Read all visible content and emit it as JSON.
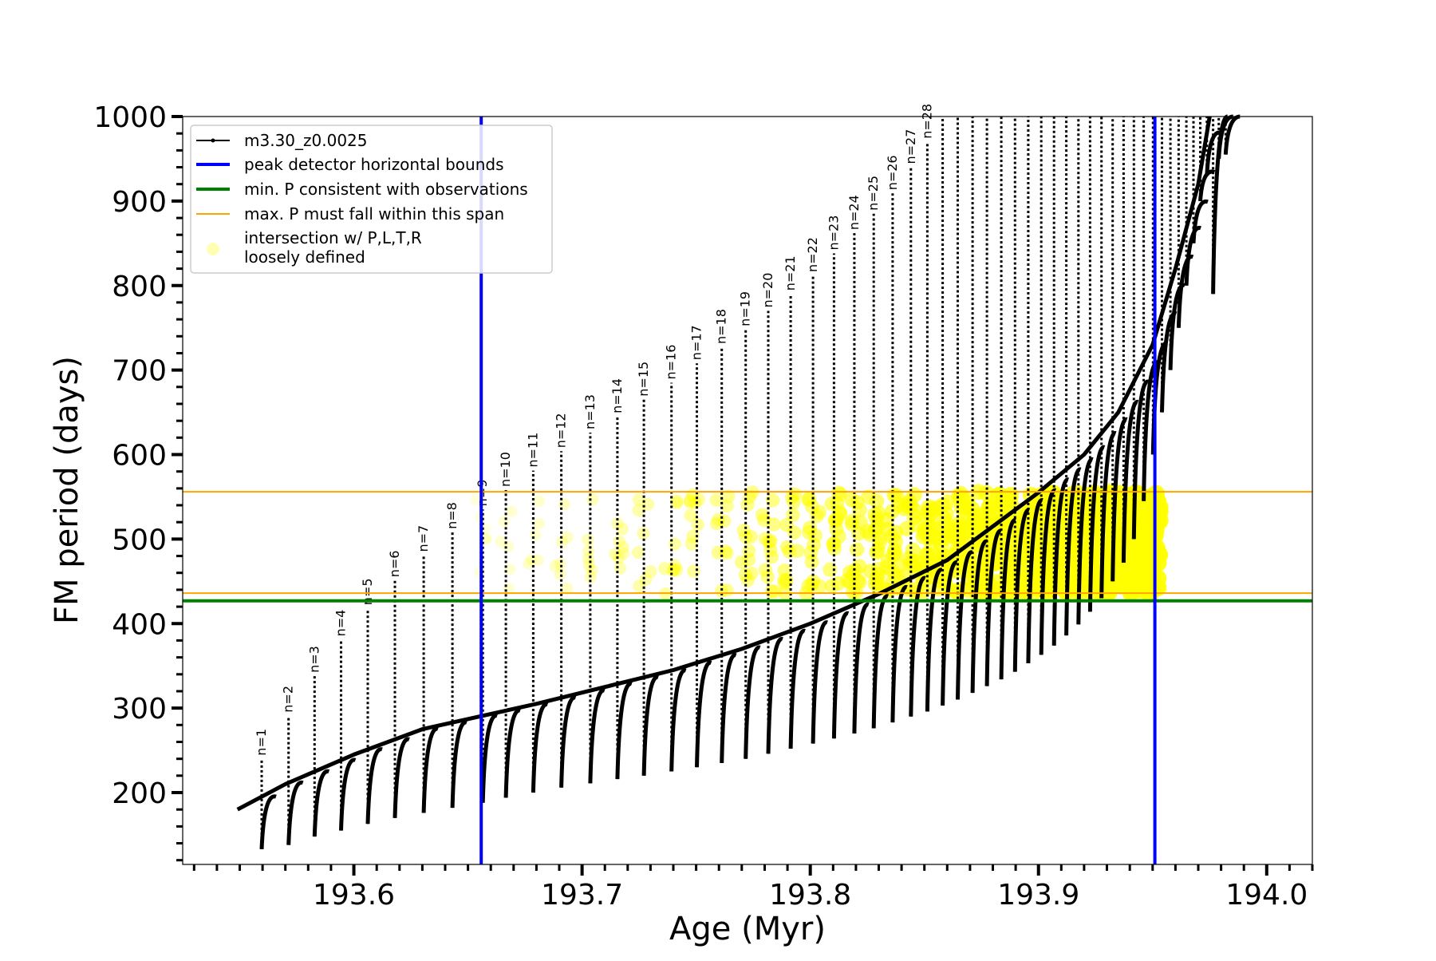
{
  "chart_data": {
    "type": "line",
    "title": "",
    "xlabel": "Age (Myr)",
    "ylabel": "FM period (days)",
    "xlim": [
      193.525,
      194.02
    ],
    "ylim": [
      115,
      1000
    ],
    "x_ticks": [
      193.6,
      193.7,
      193.8,
      193.9,
      194.0
    ],
    "x_tick_labels": [
      "193.6",
      "193.7",
      "193.8",
      "193.9",
      "194.0"
    ],
    "x_minor_step": 0.01,
    "y_ticks": [
      200,
      300,
      400,
      500,
      600,
      700,
      800,
      900,
      1000
    ],
    "y_tick_labels": [
      "200",
      "300",
      "400",
      "500",
      "600",
      "700",
      "800",
      "900",
      "1000"
    ],
    "y_minor_step": 20,
    "grid": false,
    "legend_position": "top-left",
    "legend": [
      {
        "label": "m3.30_z0.0025",
        "style": "line-marker",
        "color": "#000000"
      },
      {
        "label": "peak detector horizontal bounds",
        "style": "line",
        "color": "#0000ff"
      },
      {
        "label": "min. P consistent with observations",
        "style": "line",
        "color": "#008000"
      },
      {
        "label": "max. P must fall within this span",
        "style": "line",
        "color": "#ffa500"
      },
      {
        "label": "intersection w/ P,L,T,R",
        "label2": "loosely defined",
        "style": "marker",
        "color": "#ffff00"
      }
    ],
    "vertical_lines": [
      {
        "x": 193.6558,
        "color": "#0000ff"
      },
      {
        "x": 193.951,
        "color": "#0000ff"
      }
    ],
    "horizontal_lines": [
      {
        "y": 427,
        "color": "#008000"
      },
      {
        "y": 436,
        "color": "#ffa500"
      },
      {
        "y": 556,
        "color": "#ffa500"
      }
    ],
    "pulses": [
      {
        "label": "n=1",
        "x": 193.5596,
        "peak": 240,
        "trough": 133
      },
      {
        "label": "n=2",
        "x": 193.5714,
        "peak": 291,
        "trough": 138
      },
      {
        "label": "n=3",
        "x": 193.5828,
        "peak": 338,
        "trough": 148
      },
      {
        "label": "n=4",
        "x": 193.5944,
        "peak": 381,
        "trough": 155
      },
      {
        "label": "n=5",
        "x": 193.6061,
        "peak": 418,
        "trough": 163
      },
      {
        "label": "n=6",
        "x": 193.618,
        "peak": 451,
        "trough": 170
      },
      {
        "label": "n=7",
        "x": 193.6306,
        "peak": 481,
        "trough": 176
      },
      {
        "label": "n=8",
        "x": 193.6432,
        "peak": 508,
        "trough": 182
      },
      {
        "label": "n=9",
        "x": 193.6565,
        "peak": 535,
        "trough": 188
      },
      {
        "label": "n=10",
        "x": 193.6666,
        "peak": 558,
        "trough": 194
      },
      {
        "label": "n=11",
        "x": 193.6786,
        "peak": 581,
        "trough": 200
      },
      {
        "label": "n=12",
        "x": 193.6909,
        "peak": 604,
        "trough": 206
      },
      {
        "label": "n=13",
        "x": 193.7036,
        "peak": 626,
        "trough": 211
      },
      {
        "label": "n=14",
        "x": 193.7155,
        "peak": 645,
        "trough": 216
      },
      {
        "label": "n=15",
        "x": 193.7271,
        "peak": 665,
        "trough": 220
      },
      {
        "label": "n=16",
        "x": 193.7392,
        "peak": 685,
        "trough": 225
      },
      {
        "label": "n=17",
        "x": 193.7503,
        "peak": 708,
        "trough": 230
      },
      {
        "label": "n=18",
        "x": 193.7612,
        "peak": 727,
        "trough": 235
      },
      {
        "label": "n=19",
        "x": 193.7717,
        "peak": 748,
        "trough": 240
      },
      {
        "label": "n=20",
        "x": 193.7816,
        "peak": 770,
        "trough": 246
      },
      {
        "label": "n=21",
        "x": 193.7914,
        "peak": 790,
        "trough": 252
      },
      {
        "label": "n=22",
        "x": 193.8012,
        "peak": 812,
        "trough": 258
      },
      {
        "label": "n=23",
        "x": 193.8104,
        "peak": 838,
        "trough": 264
      },
      {
        "label": "n=24",
        "x": 193.8193,
        "peak": 862,
        "trough": 270
      },
      {
        "label": "n=25",
        "x": 193.8278,
        "peak": 885,
        "trough": 276
      },
      {
        "label": "n=26",
        "x": 193.8361,
        "peak": 909,
        "trough": 283
      },
      {
        "label": "n=27",
        "x": 193.8441,
        "peak": 940,
        "trough": 290
      },
      {
        "label": "n=28",
        "x": 193.8513,
        "peak": 970,
        "trough": 296
      },
      {
        "label": "",
        "x": 193.858,
        "peak": 1000,
        "trough": 303
      },
      {
        "label": "",
        "x": 193.8646,
        "peak": 1000,
        "trough": 310
      },
      {
        "label": "",
        "x": 193.8711,
        "peak": 1000,
        "trough": 318
      },
      {
        "label": "",
        "x": 193.8774,
        "peak": 1000,
        "trough": 326
      },
      {
        "label": "",
        "x": 193.8837,
        "peak": 1000,
        "trough": 334
      },
      {
        "label": "",
        "x": 193.8897,
        "peak": 1000,
        "trough": 343
      },
      {
        "label": "",
        "x": 193.8955,
        "peak": 1000,
        "trough": 353
      },
      {
        "label": "",
        "x": 193.9012,
        "peak": 1000,
        "trough": 363
      },
      {
        "label": "",
        "x": 193.9068,
        "peak": 1000,
        "trough": 374
      },
      {
        "label": "",
        "x": 193.9122,
        "peak": 1000,
        "trough": 386
      },
      {
        "label": "",
        "x": 193.9175,
        "peak": 1000,
        "trough": 399
      },
      {
        "label": "",
        "x": 193.9226,
        "peak": 1000,
        "trough": 414
      },
      {
        "label": "",
        "x": 193.9276,
        "peak": 1000,
        "trough": 430
      },
      {
        "label": "",
        "x": 193.9325,
        "peak": 1000,
        "trough": 450
      },
      {
        "label": "",
        "x": 193.9373,
        "peak": 1000,
        "trough": 472
      },
      {
        "label": "",
        "x": 193.9418,
        "peak": 1000,
        "trough": 500
      },
      {
        "label": "",
        "x": 193.9461,
        "peak": 1000,
        "trough": 545
      },
      {
        "label": "",
        "x": 193.9502,
        "peak": 1000,
        "trough": 600
      },
      {
        "label": "",
        "x": 193.9541,
        "peak": 1000,
        "trough": 650
      },
      {
        "label": "",
        "x": 193.9578,
        "peak": 1000,
        "trough": 700
      },
      {
        "label": "",
        "x": 193.9614,
        "peak": 1000,
        "trough": 750
      },
      {
        "label": "",
        "x": 193.9648,
        "peak": 1000,
        "trough": 800
      },
      {
        "label": "",
        "x": 193.9679,
        "peak": 1000,
        "trough": 850
      },
      {
        "label": "",
        "x": 193.9709,
        "peak": 1000,
        "trough": 900
      },
      {
        "label": "",
        "x": 193.9738,
        "peak": 1000,
        "trough": 930
      },
      {
        "label": "",
        "x": 193.9765,
        "peak": 1000,
        "trough": 790
      },
      {
        "label": "",
        "x": 193.979,
        "peak": 1000,
        "trough": 950
      },
      {
        "label": "",
        "x": 193.982,
        "peak": 1000,
        "trough": 955
      }
    ],
    "baseline": {
      "x": [
        193.549,
        193.57,
        193.6,
        193.63,
        193.655,
        193.68,
        193.71,
        193.74,
        193.77,
        193.8,
        193.83,
        193.86,
        193.88,
        193.9,
        193.92,
        193.935,
        193.95,
        193.96,
        193.97,
        193.975
      ],
      "y": [
        180,
        210,
        245,
        275,
        290,
        305,
        325,
        345,
        370,
        400,
        435,
        475,
        515,
        555,
        600,
        650,
        730,
        820,
        920,
        1000
      ]
    },
    "intersection_points": {
      "x_range": [
        193.655,
        193.951
      ],
      "y_range": [
        420,
        556
      ]
    }
  }
}
